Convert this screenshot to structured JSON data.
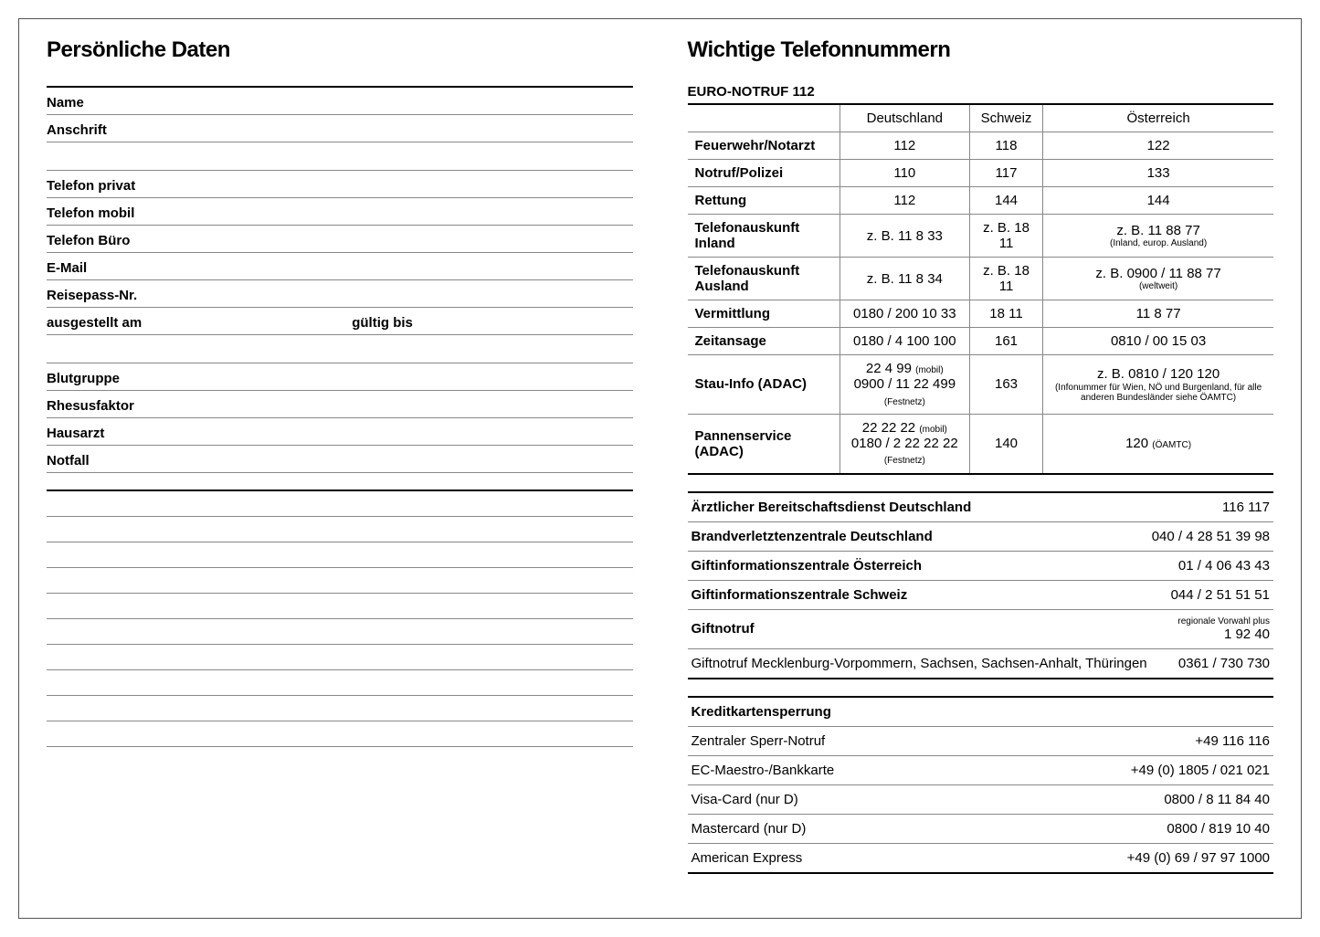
{
  "left": {
    "title": "Persönliche Daten",
    "fields": [
      "Name",
      "Anschrift",
      "",
      "Telefon privat",
      "Telefon mobil",
      "Telefon Büro",
      "E-Mail",
      "Reisepass-Nr."
    ],
    "pass": {
      "left": "ausgestellt am",
      "right": "gültig bis"
    },
    "fields2": [
      "",
      "Blutgruppe",
      "Rhesusfaktor",
      "Hausarzt",
      "Notfall"
    ],
    "blank_count": 10
  },
  "right": {
    "title": "Wichtige Telefonnummern",
    "euro_header": "EURO-NOTRUF 112",
    "cols": [
      "Deutschland",
      "Schweiz",
      "Österreich"
    ],
    "rows": [
      {
        "label": "Feuerwehr/Notarzt",
        "de": "112",
        "ch": "118",
        "at": "122"
      },
      {
        "label": "Notruf/Polizei",
        "de": "110",
        "ch": "117",
        "at": "133"
      },
      {
        "label": "Rettung",
        "de": "112",
        "ch": "144",
        "at": "144"
      },
      {
        "label": "Telefonauskunft Inland",
        "de": "z. B. 11 8 33",
        "ch": "z. B. 18 11",
        "at": "z. B. 11 88 77",
        "at_small": "(Inland, europ. Ausland)"
      },
      {
        "label": "Telefonauskunft Ausland",
        "de": "z. B. 11 8 34",
        "ch": "z. B. 18 11",
        "at": "z. B. 0900 / 11 88 77",
        "at_small": "(weltweit)"
      },
      {
        "label": "Vermittlung",
        "de": "0180 / 200 10 33",
        "ch": "18 11",
        "at": "11 8 77"
      },
      {
        "label": "Zeitansage",
        "de": "0180 / 4 100 100",
        "ch": "161",
        "at": "0810 / 00 15 03"
      },
      {
        "label": "Stau-Info (ADAC)",
        "de": "22 4 99",
        "de_small": "(mobil)",
        "de2": "0900 / 11 22 499",
        "de2_small": "(Festnetz)",
        "ch": "163",
        "at": "z. B. 0810 / 120 120",
        "at_small": "(Infonummer für Wien, NÖ und Burgenland, für alle anderen Bundesländer siehe ÖAMTC)"
      },
      {
        "label": "Pannenservice (ADAC)",
        "de": "22 22 22",
        "de_small": "(mobil)",
        "de2": "0180 / 2 22 22 22",
        "de2_small": "(Festnetz)",
        "ch": "140",
        "at": "120",
        "at_small": "(ÖAMTC)"
      }
    ],
    "services": [
      {
        "k": "Ärztlicher Bereitschaftsdienst Deutschland",
        "v": "116 117",
        "bold": true
      },
      {
        "k": "Brandverletztenzentrale Deutschland",
        "v": "040 / 4 28 51 39 98",
        "bold": true
      },
      {
        "k": "Giftinformationszentrale Österreich",
        "v": "01 / 4 06 43 43",
        "bold": true
      },
      {
        "k": "Giftinformationszentrale Schweiz",
        "v": "044 / 2 51 51 51",
        "bold": true
      },
      {
        "k": "Giftnotruf",
        "v": "regionale Vorwahl plus",
        "v2": "1 92 40",
        "bold": true,
        "vsmall": true
      },
      {
        "k": "Giftnotruf Mecklenburg-Vorpommern, Sachsen, Sachsen-Anhalt, Thüringen",
        "v": "0361 / 730 730",
        "bold": false
      }
    ],
    "cards_header": "Kreditkartensperrung",
    "cards": [
      {
        "k": "Zentraler Sperr-Notruf",
        "v": "+49 116 116"
      },
      {
        "k": "EC-Maestro-/Bankkarte",
        "v": "+49 (0) 1805 / 021 021"
      },
      {
        "k": "Visa-Card (nur D)",
        "v": "0800 / 8 11 84 40"
      },
      {
        "k": "Mastercard (nur D)",
        "v": "0800 / 819 10 40"
      },
      {
        "k": "American Express",
        "v": "+49 (0) 69 / 97 97 1000"
      }
    ]
  }
}
